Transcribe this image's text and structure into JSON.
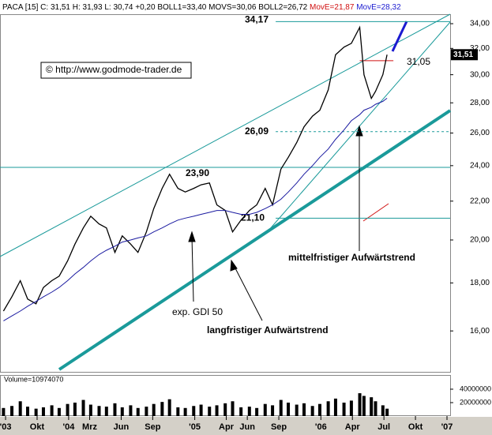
{
  "chart_data": {
    "type": "line",
    "header": {
      "text": "PACA [15] C: 31,51 H: 31,93 L: 30,74 +0,20 BOLL1=33,40 MOVS=30,06 BOLL2=26,72",
      "move1": "MovE=21,87",
      "move2": "MovE=28,32"
    },
    "copyright": "© http://www.godmode-trader.de",
    "log_scale": true,
    "xlim": [
      5.47,
      48.3
    ],
    "ylim": [
      14.5,
      34.8
    ],
    "yticks": [
      {
        "value": 16,
        "label": "16,00"
      },
      {
        "value": 18,
        "label": "18,00"
      },
      {
        "value": 20,
        "label": "20,00"
      },
      {
        "value": 22,
        "label": "22,00"
      },
      {
        "value": 24,
        "label": "24,00"
      },
      {
        "value": 26,
        "label": "26,00"
      },
      {
        "value": 28,
        "label": "28,00"
      },
      {
        "value": 30,
        "label": "30,00"
      },
      {
        "value": 32,
        "label": "32,00"
      },
      {
        "value": 34,
        "label": "34,00"
      }
    ],
    "xticks": [
      {
        "value": 6,
        "label": "'03"
      },
      {
        "value": 9,
        "label": "Okt"
      },
      {
        "value": 12,
        "label": "'04"
      },
      {
        "value": 14,
        "label": "Mrz"
      },
      {
        "value": 17,
        "label": "Jun"
      },
      {
        "value": 20,
        "label": "Sep"
      },
      {
        "value": 24,
        "label": "'05"
      },
      {
        "value": 27,
        "label": "Apr"
      },
      {
        "value": 29,
        "label": "Jun"
      },
      {
        "value": 32,
        "label": "Sep"
      },
      {
        "value": 36,
        "label": "'06"
      },
      {
        "value": 39,
        "label": "Apr"
      },
      {
        "value": 42,
        "label": "Jul"
      },
      {
        "value": 45,
        "label": "Okt"
      },
      {
        "value": 48,
        "label": "'07"
      }
    ],
    "x": [
      5.8,
      6.6,
      7.4,
      8.1,
      8.9,
      9.6,
      10.4,
      11.1,
      11.9,
      12.6,
      13.4,
      14.1,
      14.9,
      15.6,
      16.4,
      17.1,
      17.9,
      18.6,
      19.4,
      20.1,
      20.9,
      21.6,
      22.4,
      23.1,
      23.9,
      24.6,
      25.4,
      26.1,
      26.9,
      27.6,
      28.4,
      29.2,
      29.9,
      30.7,
      31.4,
      32.2,
      32.9,
      33.7,
      34.4,
      35.2,
      35.9,
      36.7,
      37.4,
      38.2,
      38.9,
      39.7,
      40.1,
      40.8,
      41.2,
      41.9,
      42.3
    ],
    "series": [
      {
        "color": "#000000",
        "values": [
          16.8,
          17.4,
          18.1,
          17.3,
          17.1,
          17.8,
          18.1,
          18.3,
          19.0,
          19.8,
          20.6,
          21.2,
          20.8,
          20.6,
          19.4,
          20.2,
          19.8,
          19.4,
          20.4,
          21.6,
          22.7,
          23.5,
          22.7,
          22.5,
          22.7,
          22.9,
          23.0,
          21.8,
          21.5,
          20.4,
          21.0,
          21.5,
          21.8,
          22.7,
          21.8,
          23.8,
          24.5,
          25.4,
          26.4,
          27.1,
          27.5,
          28.9,
          31.5,
          32.1,
          32.4,
          33.7,
          30.0,
          28.3,
          28.8,
          30.0,
          31.51
        ]
      },
      {
        "color": "#1a1aa0",
        "values": [
          16.4,
          16.6,
          16.8,
          17.0,
          17.2,
          17.4,
          17.6,
          17.8,
          18.1,
          18.4,
          18.7,
          19.0,
          19.3,
          19.5,
          19.7,
          19.9,
          20.0,
          20.1,
          20.2,
          20.4,
          20.6,
          20.8,
          21.0,
          21.1,
          21.2,
          21.3,
          21.4,
          21.5,
          21.5,
          21.4,
          21.3,
          21.3,
          21.4,
          21.6,
          21.8,
          22.1,
          22.5,
          23.0,
          23.5,
          24.0,
          24.5,
          25.0,
          25.6,
          26.2,
          26.8,
          27.2,
          27.5,
          27.7,
          27.9,
          28.1,
          28.32
        ]
      }
    ],
    "last_price": {
      "value": 31.51,
      "label": "31,51"
    },
    "levels": [
      {
        "value": 34.17,
        "label": "34,17",
        "color": "#1a9a9a",
        "from": 31.7
      },
      {
        "value": 26.09,
        "label": "26,09",
        "color": "#1a9a9a",
        "from": 31.7,
        "dashed": true
      },
      {
        "value": 23.9,
        "label": "23,90",
        "color": "#1a9a9a",
        "from": 5.47
      },
      {
        "value": 21.1,
        "label": "21,10",
        "color": "#1a9a9a",
        "from": 31.7
      },
      {
        "value": 31.05,
        "label": "31,05",
        "color": "#d01010",
        "from": 39.7,
        "to": 42.9
      }
    ],
    "annotations": [
      "mittelfristiger Aufwärtstrend",
      "exp. GDI 50",
      "langfristiger Aufwärtstrend"
    ],
    "volume": {
      "label": "Volume=10974070",
      "ylim": [
        0,
        57600000
      ],
      "yticks": [
        20000000,
        40000000
      ],
      "color": "#000000",
      "values": [
        12000000,
        15000000,
        22000000,
        14000000,
        11000000,
        13000000,
        16000000,
        12000000,
        18000000,
        20000000,
        24000000,
        17000000,
        15000000,
        14000000,
        19000000,
        13000000,
        16000000,
        12000000,
        14000000,
        18000000,
        21000000,
        25000000,
        13000000,
        12000000,
        15000000,
        17000000,
        14000000,
        16000000,
        19000000,
        22000000,
        13000000,
        14000000,
        12000000,
        18000000,
        16000000,
        24000000,
        20000000,
        17000000,
        19000000,
        15000000,
        18000000,
        22000000,
        26000000,
        20000000,
        23000000,
        34000000,
        30000000,
        28000000,
        22000000,
        16000000,
        10974070
      ]
    }
  }
}
